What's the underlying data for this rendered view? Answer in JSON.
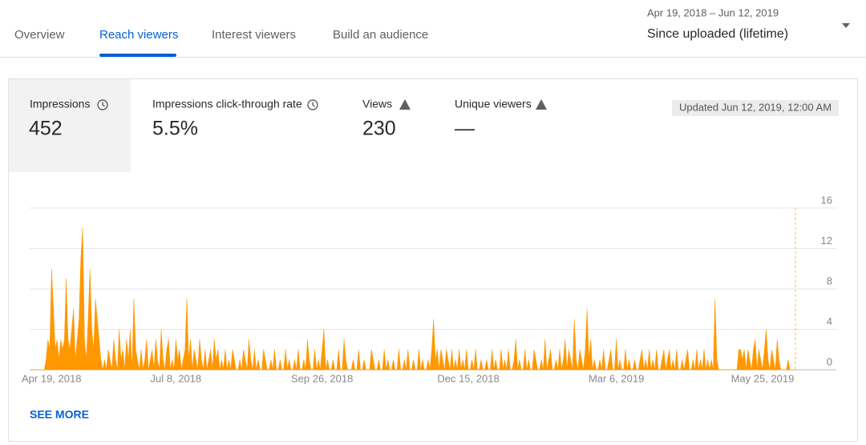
{
  "tabs": [
    "Overview",
    "Reach viewers",
    "Interest viewers",
    "Build an audience"
  ],
  "date_range": {
    "dates": "Apr 19, 2018 – Jun 12, 2019",
    "label": "Since uploaded (lifetime)"
  },
  "metrics": [
    {
      "label": "Impressions",
      "value": "452"
    },
    {
      "label": "Impressions click-through rate",
      "value": "5.5%"
    },
    {
      "label": "Views",
      "value": "230"
    },
    {
      "label": "Unique viewers",
      "value": "—"
    }
  ],
  "updated": "Updated Jun 12, 2019, 12:00 AM",
  "see_more": "SEE MORE",
  "chart_data": {
    "type": "area",
    "color": "#ff9800",
    "grid": true,
    "xlim": [
      0,
      419
    ],
    "xticks": [
      {
        "value": 0,
        "label": "Apr 19, 2018"
      },
      {
        "value": 80,
        "label": "Jul 8, 2018"
      },
      {
        "value": 160,
        "label": "Sep 26, 2018"
      },
      {
        "value": 240,
        "label": "Dec 15, 2018"
      },
      {
        "value": 321,
        "label": "Mar 6, 2019"
      },
      {
        "value": 401,
        "label": "May 25, 2019"
      }
    ],
    "ylim": [
      0,
      16
    ],
    "yticks": [
      0,
      4,
      8,
      12,
      16
    ],
    "values": [
      0,
      0,
      0,
      0,
      0,
      0,
      0,
      0,
      0,
      1,
      3,
      2,
      10,
      6,
      2,
      3,
      1,
      3,
      2,
      3,
      9,
      3,
      2,
      4,
      6,
      1,
      3,
      5,
      11,
      14,
      3,
      1,
      5,
      10,
      4,
      2,
      7,
      5,
      3,
      1,
      0,
      1,
      0,
      2,
      1,
      0,
      3,
      1,
      0,
      4,
      1,
      2,
      0,
      3,
      1,
      4,
      0,
      7,
      2,
      1,
      0,
      2,
      0,
      1,
      3,
      0,
      1,
      2,
      0,
      3,
      1,
      0,
      4,
      1,
      0,
      2,
      3,
      0,
      1,
      0,
      3,
      1,
      2,
      0,
      1,
      2,
      7,
      1,
      3,
      0,
      2,
      1,
      0,
      3,
      1,
      0,
      2,
      0,
      1,
      2,
      0,
      3,
      1,
      2,
      0,
      1,
      0,
      2,
      0,
      1,
      0,
      2,
      1,
      0,
      0,
      1,
      0,
      2,
      1,
      0,
      3,
      1,
      0,
      2,
      0,
      1,
      0,
      0,
      2,
      1,
      0,
      0,
      1,
      0,
      2,
      0,
      0,
      1,
      0,
      0,
      2,
      0,
      1,
      0,
      0,
      1,
      0,
      2,
      0,
      0,
      1,
      0,
      3,
      1,
      0,
      0,
      2,
      0,
      1,
      0,
      2,
      4,
      0,
      1,
      0,
      0,
      1,
      0,
      0,
      2,
      0,
      0,
      3,
      1,
      0,
      0,
      0,
      1,
      0,
      0,
      2,
      0,
      0,
      1,
      0,
      0,
      0,
      2,
      1,
      0,
      0,
      1,
      0,
      0,
      2,
      0,
      1,
      0,
      0,
      1,
      0,
      0,
      2,
      0,
      0,
      1,
      0,
      2,
      0,
      0,
      1,
      0,
      0,
      2,
      0,
      1,
      0,
      0,
      1,
      0,
      2,
      5,
      1,
      2,
      0,
      2,
      1,
      0,
      2,
      1,
      0,
      2,
      0,
      1,
      0,
      2,
      0,
      1,
      0,
      2,
      0,
      0,
      1,
      0,
      2,
      0,
      0,
      1,
      0,
      0,
      1,
      0,
      0,
      2,
      0,
      1,
      0,
      0,
      2,
      0,
      1,
      0,
      2,
      0,
      0,
      1,
      3,
      0,
      1,
      0,
      0,
      2,
      0,
      1,
      0,
      0,
      2,
      1,
      0,
      0,
      1,
      0,
      3,
      0,
      1,
      2,
      0,
      0,
      1,
      0,
      2,
      0,
      1,
      3,
      0,
      2,
      1,
      0,
      5,
      1,
      0,
      2,
      1,
      0,
      2,
      6,
      1,
      3,
      0,
      1,
      0,
      0,
      1,
      0,
      2,
      0,
      0,
      1,
      2,
      0,
      0,
      3,
      0,
      1,
      0,
      0,
      2,
      0,
      1,
      0,
      0,
      1,
      0,
      0,
      1,
      2,
      0,
      1,
      0,
      2,
      0,
      1,
      0,
      2,
      0,
      0,
      1,
      2,
      0,
      1,
      2,
      0,
      1,
      0,
      2,
      0,
      0,
      1,
      0,
      1,
      2,
      0,
      0,
      1,
      0,
      2,
      0,
      1,
      0,
      2,
      0,
      1,
      0,
      1,
      0,
      7,
      1,
      0,
      0,
      0,
      0,
      0,
      0,
      0,
      0,
      0,
      0,
      0,
      2,
      2,
      1,
      2,
      0,
      2,
      1,
      0,
      2,
      3,
      0,
      2,
      1,
      0,
      2,
      4,
      1,
      0,
      2,
      1,
      0,
      3,
      1,
      0,
      0,
      0,
      0,
      1,
      0,
      0,
      0,
      0
    ]
  }
}
